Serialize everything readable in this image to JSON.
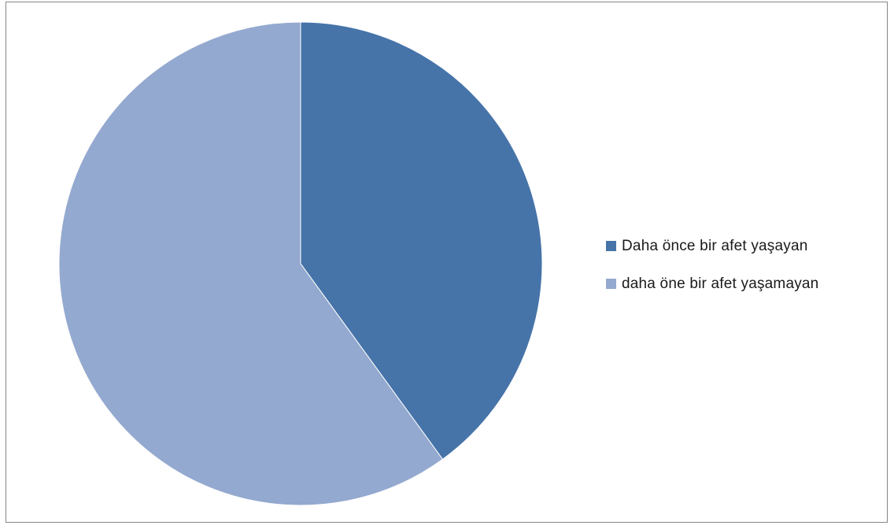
{
  "chart_data": {
    "type": "pie",
    "title": "",
    "legend_position": "right",
    "start_angle_deg": 0,
    "direction": "clockwise",
    "slices": [
      {
        "label": "Daha önce bir afet yaşayan",
        "value": 40,
        "color": "#4674a9"
      },
      {
        "label": "daha öne bir afet yaşamayan",
        "value": 60,
        "color": "#94a9cf"
      }
    ]
  }
}
